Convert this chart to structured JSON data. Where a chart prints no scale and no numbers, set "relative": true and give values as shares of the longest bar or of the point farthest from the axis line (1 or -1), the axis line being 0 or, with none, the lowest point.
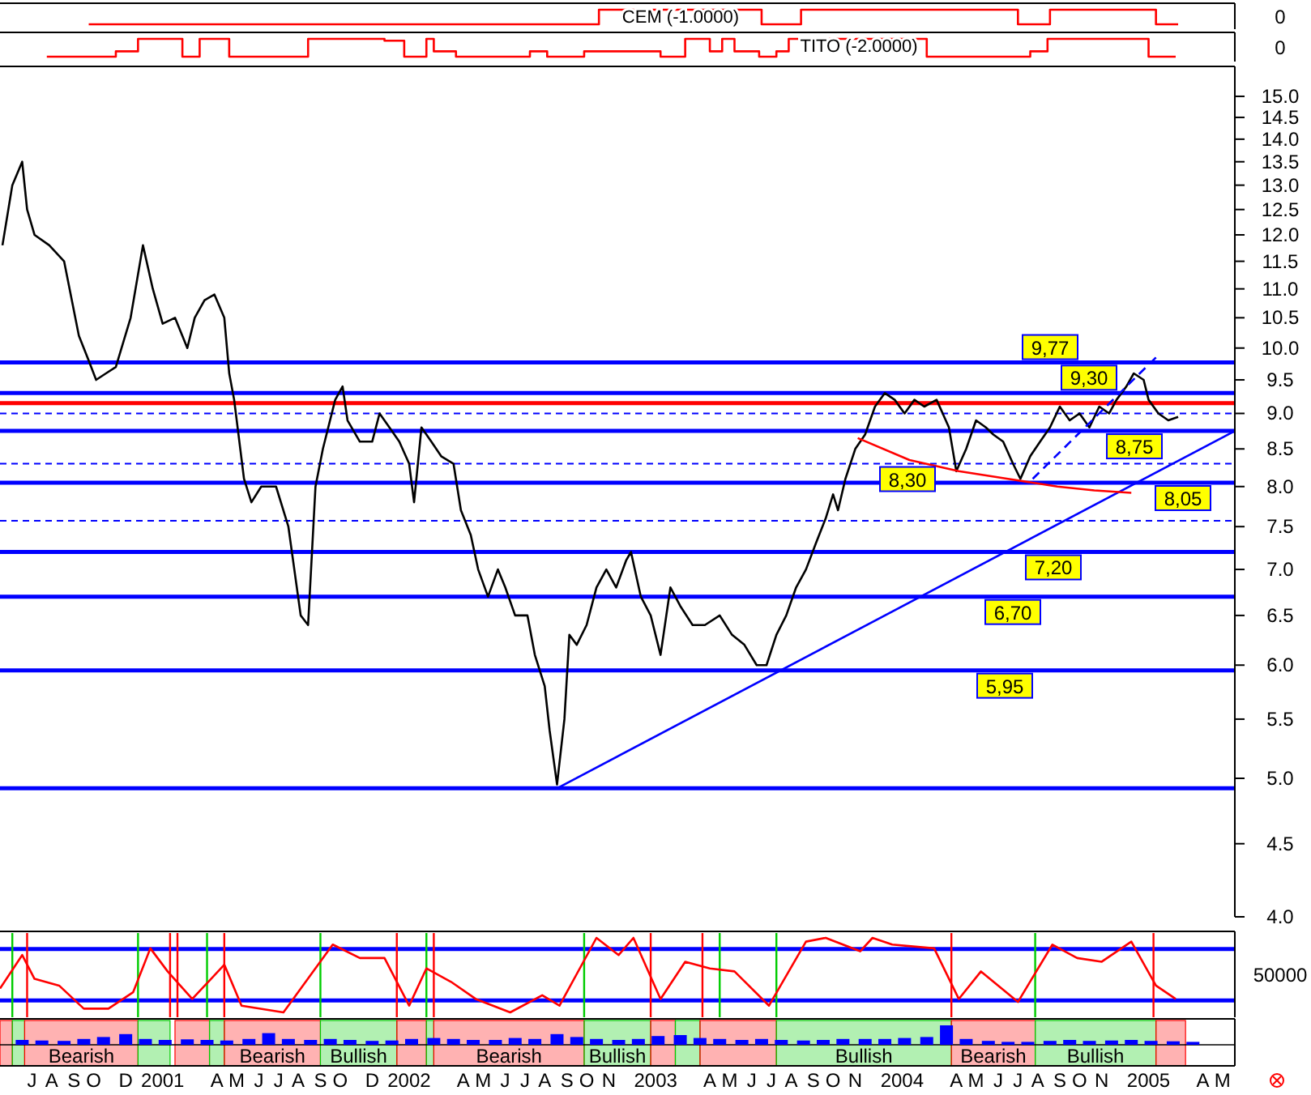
{
  "chart_data": [
    {
      "type": "step",
      "title": "CEM (-1.0000)",
      "relative": true,
      "tick_labels": false,
      "xlim": [
        2000.41,
        2005.42
      ],
      "annotations": [
        "0"
      ],
      "series": [
        {
          "color": "#ff0000",
          "x": [
            2000.77,
            2002.84,
            2003.5,
            2003.66,
            2004.54,
            2004.67,
            2005.1,
            2005.19
          ],
          "values": [
            0,
            1,
            0,
            1,
            0,
            1,
            0,
            0
          ]
        }
      ]
    },
    {
      "type": "step",
      "title": "TITO (-2.0000)",
      "relative": true,
      "tick_labels": false,
      "xlim": [
        2000.41,
        2005.42
      ],
      "annotations": [
        "0"
      ],
      "series": [
        {
          "color": "#ff0000",
          "x": [
            2000.6,
            2000.88,
            2000.97,
            2001.15,
            2001.22,
            2001.34,
            2001.66,
            2001.97,
            2002.05,
            2002.14,
            2002.17,
            2002.26,
            2002.56,
            2002.63,
            2002.78,
            2003.09,
            2003.19,
            2003.29,
            2003.34,
            2003.39,
            2003.49,
            2003.56,
            2003.61,
            2004.17,
            2004.59,
            2004.66,
            2005.07,
            2005.18
          ],
          "values": [
            0,
            0.3,
            1,
            0,
            1,
            0,
            1,
            0.9,
            0,
            1,
            0.3,
            0,
            0.3,
            0,
            0.3,
            0,
            1,
            0.3,
            1,
            0.3,
            0,
            0.3,
            1,
            0,
            0.3,
            1,
            0,
            0
          ]
        }
      ]
    },
    {
      "type": "line",
      "log": true,
      "tick_labels": "y",
      "xlim": [
        2000.41,
        2005.42
      ],
      "ylim": [
        4.0,
        15.7
      ],
      "yticks": [
        {
          "value": 4,
          "label": "4.0"
        },
        {
          "value": 4.5,
          "label": "4.5"
        },
        {
          "value": 5,
          "label": "5.0"
        },
        {
          "value": 5.5,
          "label": "5.5"
        },
        {
          "value": 6,
          "label": "6.0"
        },
        {
          "value": 6.5,
          "label": "6.5"
        },
        {
          "value": 7,
          "label": "7.0"
        },
        {
          "value": 7.5,
          "label": "7.5"
        },
        {
          "value": 8,
          "label": "8.0"
        },
        {
          "value": 8.5,
          "label": "8.5"
        },
        {
          "value": 9,
          "label": "9.0"
        },
        {
          "value": 9.5,
          "label": "9.5"
        },
        {
          "value": 10,
          "label": "10.0"
        },
        {
          "value": 10.5,
          "label": "10.5"
        },
        {
          "value": 11,
          "label": "11.0"
        },
        {
          "value": 11.5,
          "label": "11.5"
        },
        {
          "value": 12,
          "label": "12.0"
        },
        {
          "value": 12.5,
          "label": "12.5"
        },
        {
          "value": 13,
          "label": "13.0"
        },
        {
          "value": 13.5,
          "label": "13.5"
        },
        {
          "value": 14,
          "label": "14.0"
        },
        {
          "value": 14.5,
          "label": "14.5"
        },
        {
          "value": 15,
          "label": "15.0"
        }
      ],
      "ref_lines": [
        {
          "axis": "y",
          "value": 9.77,
          "label": "9,77",
          "color": "#0000ff"
        },
        {
          "axis": "y",
          "value": 9.3,
          "label": "9,30",
          "color": "#0000ff"
        },
        {
          "axis": "y",
          "value": 8.75,
          "label": "8,75",
          "color": "#0000ff"
        },
        {
          "axis": "y",
          "value": 8.3,
          "label": "8,30",
          "color": "#0000ff",
          "line_style": "dashed"
        },
        {
          "axis": "y",
          "value": 8.05,
          "label": "8,05",
          "color": "#0000ff"
        },
        {
          "axis": "y",
          "value": 7.2,
          "label": "7,20",
          "color": "#0000ff"
        },
        {
          "axis": "y",
          "value": 6.7,
          "label": "6,70",
          "color": "#0000ff"
        },
        {
          "axis": "y",
          "value": 5.95,
          "label": "5,95",
          "color": "#0000ff"
        },
        {
          "axis": "y",
          "value": 4.92,
          "color": "#0000ff"
        },
        {
          "axis": "y",
          "value": 7.57,
          "color": "#0000ff",
          "line_style": "dashed"
        },
        {
          "axis": "y",
          "value": 9.0,
          "color": "#0000ff",
          "line_style": "dashed"
        },
        {
          "axis": "y",
          "value": 9.15,
          "color": "#ff0000"
        }
      ],
      "series": [
        {
          "color": "#000000",
          "x": [
            2000.42,
            2000.46,
            2000.5,
            2000.52,
            2000.55,
            2000.61,
            2000.67,
            2000.73,
            2000.77,
            2000.8,
            2000.84,
            2000.88,
            2000.94,
            2000.99,
            2001.03,
            2001.07,
            2001.12,
            2001.17,
            2001.2,
            2001.24,
            2001.28,
            2001.32,
            2001.34,
            2001.36,
            2001.4,
            2001.43,
            2001.47,
            2001.53,
            2001.58,
            2001.63,
            2001.66,
            2001.69,
            2001.72,
            2001.77,
            2001.8,
            2001.82,
            2001.87,
            2001.92,
            2001.95,
            2001.99,
            2002.03,
            2002.07,
            2002.09,
            2002.12,
            2002.16,
            2002.2,
            2002.25,
            2002.28,
            2002.32,
            2002.35,
            2002.39,
            2002.43,
            2002.46,
            2002.5,
            2002.55,
            2002.58,
            2002.62,
            2002.64,
            2002.67,
            2002.7,
            2002.72,
            2002.75,
            2002.79,
            2002.83,
            2002.87,
            2002.91,
            2002.95,
            2002.97,
            2003.01,
            2003.05,
            2003.09,
            2003.13,
            2003.17,
            2003.22,
            2003.27,
            2003.33,
            2003.38,
            2003.43,
            2003.48,
            2003.52,
            2003.56,
            2003.6,
            2003.64,
            2003.68,
            2003.72,
            2003.76,
            2003.79,
            2003.81,
            2003.84,
            2003.88,
            2003.92,
            2003.96,
            2004.0,
            2004.04,
            2004.08,
            2004.12,
            2004.16,
            2004.21,
            2004.26,
            2004.29,
            2004.33,
            2004.37,
            2004.41,
            2004.44,
            2004.48,
            2004.52,
            2004.55,
            2004.59,
            2004.63,
            2004.67,
            2004.71,
            2004.75,
            2004.79,
            2004.83,
            2004.87,
            2004.91,
            2004.94,
            2004.98,
            2005.01,
            2005.05,
            2005.07,
            2005.11,
            2005.15,
            2005.19
          ],
          "values": [
            11.8,
            13.0,
            13.5,
            12.5,
            12.0,
            11.8,
            11.5,
            10.2,
            9.8,
            9.5,
            9.6,
            9.7,
            10.5,
            11.8,
            11.0,
            10.4,
            10.5,
            10.0,
            10.5,
            10.8,
            10.9,
            10.5,
            9.6,
            9.2,
            8.1,
            7.8,
            8.0,
            8.0,
            7.5,
            6.5,
            6.4,
            8.0,
            8.5,
            9.2,
            9.4,
            8.9,
            8.6,
            8.6,
            9.0,
            8.8,
            8.6,
            8.3,
            7.8,
            8.8,
            8.6,
            8.4,
            8.3,
            7.7,
            7.4,
            7.0,
            6.7,
            7.0,
            6.8,
            6.5,
            6.5,
            6.1,
            5.8,
            5.4,
            4.95,
            5.5,
            6.3,
            6.2,
            6.4,
            6.8,
            7.0,
            6.8,
            7.1,
            7.2,
            6.7,
            6.5,
            6.1,
            6.8,
            6.6,
            6.4,
            6.4,
            6.5,
            6.3,
            6.2,
            6.0,
            6.0,
            6.3,
            6.5,
            6.8,
            7.0,
            7.3,
            7.6,
            7.9,
            7.7,
            8.1,
            8.5,
            8.7,
            9.1,
            9.3,
            9.2,
            9.0,
            9.2,
            9.1,
            9.2,
            8.8,
            8.2,
            8.5,
            8.9,
            8.8,
            8.7,
            8.6,
            8.3,
            8.1,
            8.4,
            8.6,
            8.8,
            9.1,
            8.9,
            9.0,
            8.8,
            9.1,
            9.0,
            9.2,
            9.4,
            9.6,
            9.5,
            9.2,
            9.0,
            8.9,
            8.95
          ]
        },
        {
          "type": "line",
          "color": "#0000ff",
          "x": [
            2002.67,
            2005.42
          ],
          "values": [
            4.92,
            8.75
          ]
        },
        {
          "type": "line",
          "color": "#0000ff",
          "line_style": "dashed",
          "x": [
            2004.6,
            2005.1
          ],
          "values": [
            8.1,
            9.85
          ]
        },
        {
          "type": "line",
          "color": "#ff0000",
          "x": [
            2003.89,
            2004.1,
            2004.3,
            2004.5,
            2004.7,
            2004.85,
            2005.0
          ],
          "values": [
            8.65,
            8.35,
            8.2,
            8.1,
            8.0,
            7.95,
            7.92
          ]
        }
      ]
    },
    {
      "type": "line",
      "relative": true,
      "tick_labels": false,
      "xlim": [
        2000.41,
        2005.42
      ],
      "annotations": [
        "50000"
      ],
      "ref_lines": [
        {
          "axis": "y",
          "value": 0.85,
          "color": "#0000ff"
        },
        {
          "axis": "y",
          "value": 0.16,
          "color": "#0000ff"
        },
        {
          "axis": "x",
          "value": 2000.46,
          "color": "#00cc00"
        },
        {
          "axis": "x",
          "value": 2000.97,
          "color": "#00cc00"
        },
        {
          "axis": "x",
          "value": 2001.25,
          "color": "#00cc00"
        },
        {
          "axis": "x",
          "value": 2001.71,
          "color": "#00cc00"
        },
        {
          "axis": "x",
          "value": 2002.14,
          "color": "#00cc00"
        },
        {
          "axis": "x",
          "value": 2002.78,
          "color": "#00cc00"
        },
        {
          "axis": "x",
          "value": 2003.33,
          "color": "#00cc00"
        },
        {
          "axis": "x",
          "value": 2003.56,
          "color": "#00cc00"
        },
        {
          "axis": "x",
          "value": 2004.61,
          "color": "#00cc00"
        },
        {
          "axis": "x",
          "value": 2000.52,
          "color": "#ff0000"
        },
        {
          "axis": "x",
          "value": 2001.1,
          "color": "#ff0000"
        },
        {
          "axis": "x",
          "value": 2001.13,
          "color": "#ff0000"
        },
        {
          "axis": "x",
          "value": 2001.32,
          "color": "#ff0000"
        },
        {
          "axis": "x",
          "value": 2002.02,
          "color": "#ff0000"
        },
        {
          "axis": "x",
          "value": 2002.17,
          "color": "#ff0000"
        },
        {
          "axis": "x",
          "value": 2003.05,
          "color": "#ff0000"
        },
        {
          "axis": "x",
          "value": 2003.26,
          "color": "#ff0000"
        },
        {
          "axis": "x",
          "value": 2004.27,
          "color": "#ff0000"
        },
        {
          "axis": "x",
          "value": 2005.09,
          "color": "#ff0000"
        }
      ],
      "series": [
        {
          "color": "#ff0000",
          "x": [
            2000.41,
            2000.5,
            2000.55,
            2000.65,
            2000.75,
            2000.85,
            2000.95,
            2001.02,
            2001.09,
            2001.19,
            2001.32,
            2001.39,
            2001.56,
            2001.76,
            2001.87,
            2001.97,
            2002.07,
            2002.14,
            2002.24,
            2002.34,
            2002.48,
            2002.61,
            2002.68,
            2002.83,
            2002.92,
            2002.98,
            2003.09,
            2003.19,
            2003.29,
            2003.39,
            2003.53,
            2003.68,
            2003.76,
            2003.9,
            2003.95,
            2004.03,
            2004.2,
            2004.3,
            2004.39,
            2004.54,
            2004.68,
            2004.78,
            2004.88,
            2005.0,
            2005.1,
            2005.18
          ],
          "values": [
            0.32,
            0.77,
            0.45,
            0.36,
            0.05,
            0.05,
            0.27,
            0.86,
            0.55,
            0.18,
            0.64,
            0.09,
            0,
            0.91,
            0.73,
            0.73,
            0.09,
            0.59,
            0.41,
            0.18,
            0,
            0.23,
            0.09,
            1,
            0.77,
            1,
            0.18,
            0.68,
            0.59,
            0.55,
            0.09,
            0.95,
            1,
            0.82,
            1,
            0.91,
            0.86,
            0.18,
            0.55,
            0.14,
            0.91,
            0.73,
            0.68,
            0.95,
            0.36,
            0.18
          ]
        }
      ]
    },
    {
      "type": "bar",
      "relative": true,
      "tick_labels": "x",
      "xlim": [
        2000.41,
        2005.42
      ],
      "xticks": [
        {
          "value": 2000.54,
          "label": "J"
        },
        {
          "value": 2000.62,
          "label": "A"
        },
        {
          "value": 2000.71,
          "label": "S"
        },
        {
          "value": 2000.79,
          "label": "O"
        },
        {
          "value": 2000.92,
          "label": "D"
        },
        {
          "value": 2001.07,
          "label": "2001"
        },
        {
          "value": 2001.29,
          "label": "A"
        },
        {
          "value": 2001.37,
          "label": "M"
        },
        {
          "value": 2001.46,
          "label": "J"
        },
        {
          "value": 2001.54,
          "label": "J"
        },
        {
          "value": 2001.62,
          "label": "A"
        },
        {
          "value": 2001.71,
          "label": "S"
        },
        {
          "value": 2001.79,
          "label": "O"
        },
        {
          "value": 2001.92,
          "label": "D"
        },
        {
          "value": 2002.07,
          "label": "2002"
        },
        {
          "value": 2002.29,
          "label": "A"
        },
        {
          "value": 2002.37,
          "label": "M"
        },
        {
          "value": 2002.46,
          "label": "J"
        },
        {
          "value": 2002.54,
          "label": "J"
        },
        {
          "value": 2002.62,
          "label": "A"
        },
        {
          "value": 2002.71,
          "label": "S"
        },
        {
          "value": 2002.79,
          "label": "O"
        },
        {
          "value": 2002.88,
          "label": "N"
        },
        {
          "value": 2003.07,
          "label": "2003"
        },
        {
          "value": 2003.29,
          "label": "A"
        },
        {
          "value": 2003.37,
          "label": "M"
        },
        {
          "value": 2003.46,
          "label": "J"
        },
        {
          "value": 2003.54,
          "label": "J"
        },
        {
          "value": 2003.62,
          "label": "A"
        },
        {
          "value": 2003.71,
          "label": "S"
        },
        {
          "value": 2003.79,
          "label": "O"
        },
        {
          "value": 2003.88,
          "label": "N"
        },
        {
          "value": 2004.07,
          "label": "2004"
        },
        {
          "value": 2004.29,
          "label": "A"
        },
        {
          "value": 2004.37,
          "label": "M"
        },
        {
          "value": 2004.46,
          "label": "J"
        },
        {
          "value": 2004.54,
          "label": "J"
        },
        {
          "value": 2004.62,
          "label": "A"
        },
        {
          "value": 2004.71,
          "label": "S"
        },
        {
          "value": 2004.79,
          "label": "O"
        },
        {
          "value": 2004.88,
          "label": "N"
        },
        {
          "value": 2005.07,
          "label": "2005"
        },
        {
          "value": 2005.29,
          "label": "A"
        },
        {
          "value": 2005.37,
          "label": "M"
        }
      ],
      "bands": [
        {
          "axis": "x",
          "from": 2000.41,
          "to": 2000.46,
          "color": "#ff0000"
        },
        {
          "axis": "x",
          "from": 2000.46,
          "to": 2000.51,
          "color": "#00cc00"
        },
        {
          "axis": "x",
          "from": 2000.51,
          "to": 2000.97,
          "label": "Bearish",
          "color": "#ff0000"
        },
        {
          "axis": "x",
          "from": 2000.97,
          "to": 2001.1,
          "color": "#00cc00"
        },
        {
          "axis": "x",
          "from": 2001.12,
          "to": 2001.26,
          "color": "#ff0000"
        },
        {
          "axis": "x",
          "from": 2001.26,
          "to": 2001.32,
          "color": "#00cc00"
        },
        {
          "axis": "x",
          "from": 2001.32,
          "to": 2001.71,
          "label": "Bearish",
          "color": "#ff0000"
        },
        {
          "axis": "x",
          "from": 2001.71,
          "to": 2002.02,
          "label": "Bullish",
          "color": "#00cc00"
        },
        {
          "axis": "x",
          "from": 2002.02,
          "to": 2002.14,
          "color": "#ff0000"
        },
        {
          "axis": "x",
          "from": 2002.14,
          "to": 2002.17,
          "color": "#00cc00"
        },
        {
          "axis": "x",
          "from": 2002.17,
          "to": 2002.78,
          "label": "Bearish",
          "color": "#ff0000"
        },
        {
          "axis": "x",
          "from": 2002.78,
          "to": 2003.05,
          "label": "Bullish",
          "color": "#00cc00"
        },
        {
          "axis": "x",
          "from": 2003.05,
          "to": 2003.15,
          "color": "#ff0000"
        },
        {
          "axis": "x",
          "from": 2003.15,
          "to": 2003.25,
          "color": "#00cc00"
        },
        {
          "axis": "x",
          "from": 2003.25,
          "to": 2003.56,
          "color": "#ff0000"
        },
        {
          "axis": "x",
          "from": 2003.56,
          "to": 2004.27,
          "label": "Bullish",
          "color": "#00cc00"
        },
        {
          "axis": "x",
          "from": 2004.27,
          "to": 2004.61,
          "label": "Bearish",
          "color": "#ff0000"
        },
        {
          "axis": "x",
          "from": 2004.61,
          "to": 2005.1,
          "label": "Bullish",
          "color": "#00cc00"
        },
        {
          "axis": "x",
          "from": 2005.1,
          "to": 2005.22,
          "color": "#ff0000"
        }
      ],
      "series": [
        {
          "color": "#0000ff",
          "x": [
            2000.5,
            2000.58,
            2000.67,
            2000.75,
            2000.83,
            2000.92,
            2001.0,
            2001.08,
            2001.17,
            2001.25,
            2001.33,
            2001.42,
            2001.5,
            2001.58,
            2001.67,
            2001.75,
            2001.83,
            2001.92,
            2002.0,
            2002.08,
            2002.17,
            2002.25,
            2002.33,
            2002.42,
            2002.5,
            2002.58,
            2002.67,
            2002.75,
            2002.83,
            2002.92,
            2003.0,
            2003.08,
            2003.17,
            2003.25,
            2003.33,
            2003.42,
            2003.5,
            2003.58,
            2003.67,
            2003.75,
            2003.83,
            2003.92,
            2004.0,
            2004.08,
            2004.17,
            2004.25,
            2004.33,
            2004.42,
            2004.5,
            2004.58,
            2004.67,
            2004.75,
            2004.83,
            2004.92,
            2005.0,
            2005.08,
            2005.17,
            2005.25
          ],
          "values": [
            0.25,
            0.22,
            0.2,
            0.3,
            0.4,
            0.55,
            0.3,
            0.25,
            0.28,
            0.25,
            0.22,
            0.3,
            0.6,
            0.3,
            0.25,
            0.3,
            0.25,
            0.2,
            0.22,
            0.3,
            0.35,
            0.3,
            0.25,
            0.25,
            0.35,
            0.3,
            0.55,
            0.4,
            0.3,
            0.25,
            0.3,
            0.45,
            0.5,
            0.35,
            0.3,
            0.25,
            0.3,
            0.25,
            0.22,
            0.25,
            0.3,
            0.3,
            0.3,
            0.35,
            0.4,
            1,
            0.3,
            0.2,
            0.15,
            0.15,
            0.2,
            0.25,
            0.2,
            0.22,
            0.25,
            0.2,
            0.18,
            0.15
          ]
        }
      ]
    }
  ]
}
